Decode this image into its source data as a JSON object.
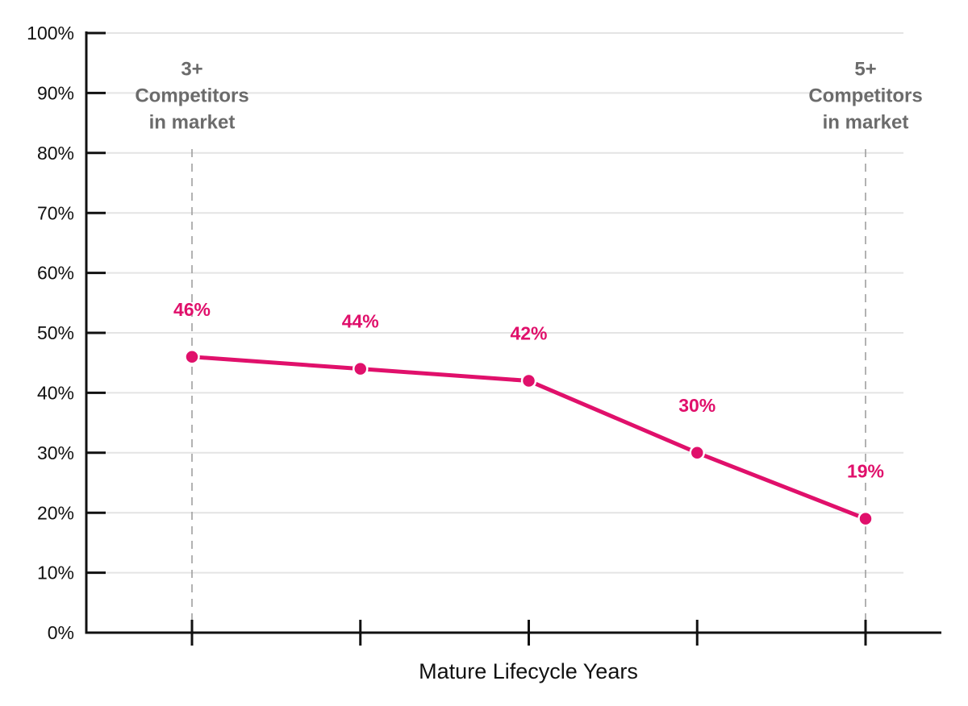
{
  "chart_data": {
    "type": "line",
    "x_label": "Mature Lifecycle Years",
    "categories": [
      null,
      null,
      null,
      null,
      null
    ],
    "series": [
      {
        "name": null,
        "color": "#e0106b",
        "values": [
          46,
          44,
          42,
          30,
          19
        ],
        "value_labels": [
          "46%",
          "44%",
          "42%",
          "30%",
          "19%"
        ]
      }
    ],
    "ylim": [
      0,
      100
    ],
    "yticks": [
      {
        "value": 0,
        "label": "0%"
      },
      {
        "value": 10,
        "label": "10%"
      },
      {
        "value": 20,
        "label": "20%"
      },
      {
        "value": 30,
        "label": "30%"
      },
      {
        "value": 40,
        "label": "40%"
      },
      {
        "value": 50,
        "label": "50%"
      },
      {
        "value": 60,
        "label": "60%"
      },
      {
        "value": 70,
        "label": "70%"
      },
      {
        "value": 80,
        "label": "80%"
      },
      {
        "value": 90,
        "label": "90%"
      },
      {
        "value": 100,
        "label": "100%"
      }
    ],
    "grid": true,
    "annotations": [
      {
        "lines": [
          "3+",
          "Competitors",
          "in market"
        ]
      },
      {
        "lines": [
          "5+",
          "Competitors",
          "in market"
        ]
      }
    ]
  }
}
